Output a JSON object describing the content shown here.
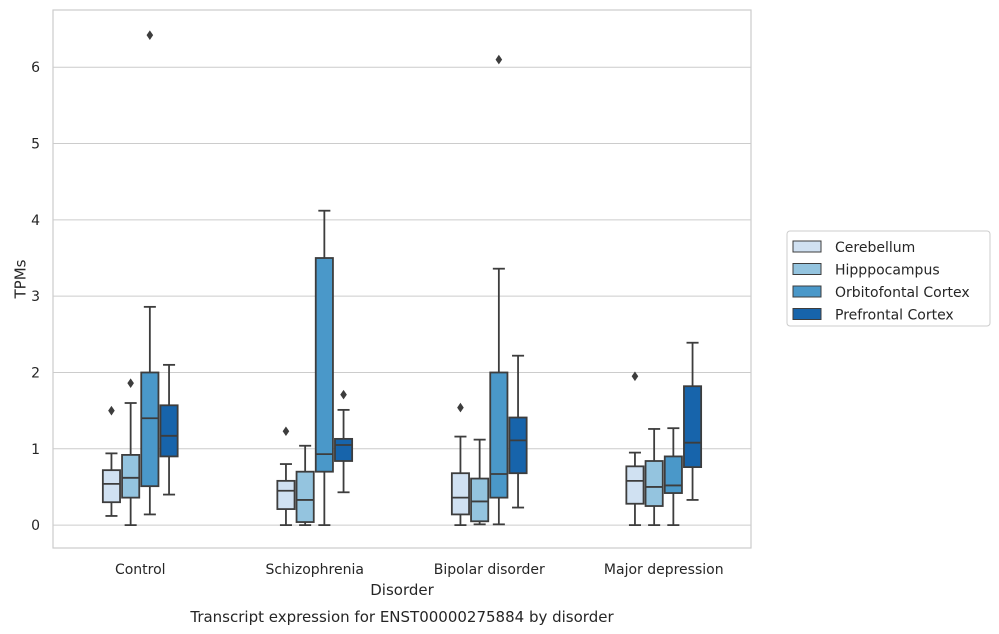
{
  "chart_data": {
    "type": "box",
    "title": "",
    "caption": "Transcript expression for ENST00000275884 by disorder",
    "xlabel": "Disorder",
    "ylabel": "TPMs",
    "ylim": [
      -0.3,
      6.75
    ],
    "yticks": [
      0,
      1,
      2,
      3,
      4,
      5,
      6
    ],
    "grid": "horizontal",
    "legend_position": "right",
    "categories": [
      "Control",
      "Schizophrenia",
      "Bipolar disorder",
      "Major depression"
    ],
    "series": [
      {
        "name": "Cerebellum",
        "color": "#d0e1f2",
        "boxes": [
          {
            "whisker_low": 0.12,
            "q1": 0.3,
            "median": 0.54,
            "q3": 0.72,
            "whisker_high": 0.94,
            "outliers": [
              1.5
            ]
          },
          {
            "whisker_low": 0.0,
            "q1": 0.21,
            "median": 0.45,
            "q3": 0.58,
            "whisker_high": 0.8,
            "outliers": [
              1.23
            ]
          },
          {
            "whisker_low": 0.0,
            "q1": 0.14,
            "median": 0.36,
            "q3": 0.68,
            "whisker_high": 1.16,
            "outliers": [
              1.54
            ]
          },
          {
            "whisker_low": 0.0,
            "q1": 0.28,
            "median": 0.58,
            "q3": 0.77,
            "whisker_high": 0.95,
            "outliers": [
              1.95
            ]
          }
        ]
      },
      {
        "name": "Hipppocampus",
        "color": "#94c4df",
        "boxes": [
          {
            "whisker_low": 0.0,
            "q1": 0.36,
            "median": 0.62,
            "q3": 0.92,
            "whisker_high": 1.6,
            "outliers": [
              1.86
            ]
          },
          {
            "whisker_low": 0.0,
            "q1": 0.04,
            "median": 0.33,
            "q3": 0.7,
            "whisker_high": 1.04,
            "outliers": []
          },
          {
            "whisker_low": 0.01,
            "q1": 0.05,
            "median": 0.31,
            "q3": 0.61,
            "whisker_high": 1.12,
            "outliers": []
          },
          {
            "whisker_low": 0.0,
            "q1": 0.25,
            "median": 0.5,
            "q3": 0.84,
            "whisker_high": 1.26,
            "outliers": []
          }
        ]
      },
      {
        "name": "Orbitofontal Cortex",
        "color": "#4a98c9",
        "boxes": [
          {
            "whisker_low": 0.14,
            "q1": 0.51,
            "median": 1.4,
            "q3": 2.0,
            "whisker_high": 2.86,
            "outliers": [
              6.42
            ]
          },
          {
            "whisker_low": 0.0,
            "q1": 0.7,
            "median": 0.93,
            "q3": 3.5,
            "whisker_high": 4.12,
            "outliers": []
          },
          {
            "whisker_low": 0.01,
            "q1": 0.36,
            "median": 0.67,
            "q3": 2.0,
            "whisker_high": 3.36,
            "outliers": [
              6.1
            ]
          },
          {
            "whisker_low": 0.0,
            "q1": 0.42,
            "median": 0.52,
            "q3": 0.9,
            "whisker_high": 1.27,
            "outliers": []
          }
        ]
      },
      {
        "name": "Prefrontal Cortex",
        "color": "#1764ab",
        "boxes": [
          {
            "whisker_low": 0.4,
            "q1": 0.9,
            "median": 1.17,
            "q3": 1.57,
            "whisker_high": 2.1,
            "outliers": []
          },
          {
            "whisker_low": 0.43,
            "q1": 0.84,
            "median": 1.05,
            "q3": 1.13,
            "whisker_high": 1.51,
            "outliers": [
              1.71
            ]
          },
          {
            "whisker_low": 0.23,
            "q1": 0.68,
            "median": 1.11,
            "q3": 1.41,
            "whisker_high": 2.22,
            "outliers": []
          },
          {
            "whisker_low": 0.33,
            "q1": 0.76,
            "median": 1.08,
            "q3": 1.82,
            "whisker_high": 2.39,
            "outliers": []
          }
        ]
      }
    ]
  },
  "colors": {
    "grid": "#cccccc",
    "frame": "#cccccc",
    "box_edge": "#3d3d3d",
    "text": "#262626"
  }
}
